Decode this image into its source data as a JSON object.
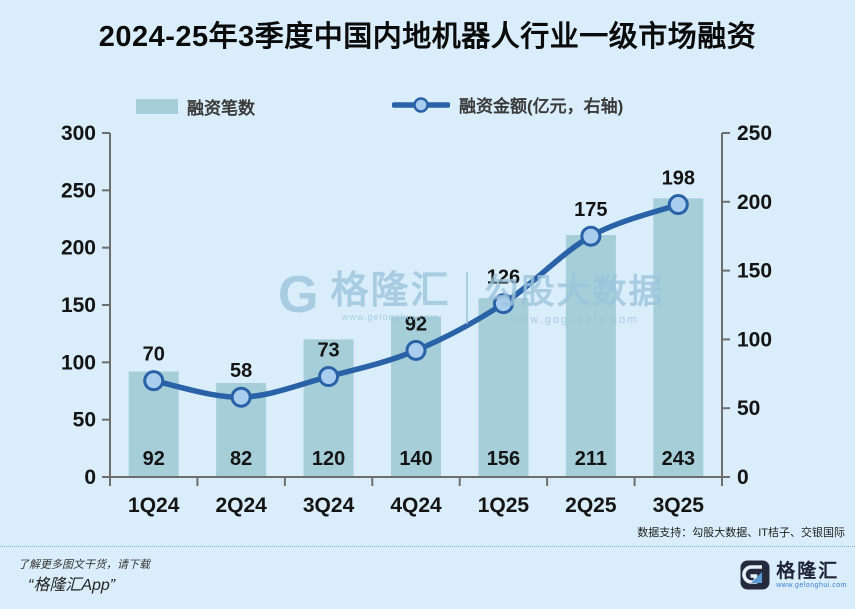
{
  "page": {
    "title": "2024-25年3季度中国内地机器人行业一级市场融资"
  },
  "legend": {
    "bars_label": "融资笔数",
    "line_label": "融资金额(亿元，右轴)"
  },
  "chart_data": {
    "type": "combo",
    "title": "2024-25年3季度中国内地机器人行业一级市场融资",
    "categories": [
      "1Q24",
      "2Q24",
      "3Q24",
      "4Q24",
      "1Q25",
      "2Q25",
      "3Q25"
    ],
    "series": [
      {
        "name": "融资笔数",
        "type": "bar",
        "axis": "left",
        "values": [
          92,
          82,
          120,
          140,
          156,
          211,
          243
        ]
      },
      {
        "name": "融资金额(亿元，右轴)",
        "type": "line",
        "axis": "right",
        "values": [
          70,
          58,
          73,
          92,
          126,
          175,
          198
        ]
      }
    ],
    "left_axis": {
      "min": 0,
      "max": 300,
      "ticks": [
        0,
        50,
        100,
        150,
        200,
        250,
        300
      ]
    },
    "right_axis": {
      "min": 0,
      "max": 250,
      "ticks": [
        0,
        50,
        100,
        150,
        200,
        250
      ]
    },
    "grid": false,
    "legend_position": "top"
  },
  "watermark": {
    "glyph": "G",
    "brand": "格隆汇",
    "brand_url": "www.gelonghui.com",
    "product": "勾股大数据",
    "product_url": "www.gogudata.com"
  },
  "footnote": {
    "data_support": "数据支持：勾股大数据、IT桔子、交银国际"
  },
  "footer": {
    "promo_line1": "了解更多图文干货，请下载",
    "promo_line2": "“格隆汇App”",
    "logo_glyph": "G",
    "logo_text": "格隆汇",
    "logo_url": "www.gelonghui.com"
  },
  "colors": {
    "background": "#d9eefa",
    "bar": "#a5ced9",
    "line": "#2a62a8",
    "marker_fill": "#a9cdee",
    "axis": "#6e6e6e",
    "label": "#141414",
    "watermark": "#9cc4dc",
    "logo_dark": "#252b3d",
    "logo_blue": "#5b9bd5"
  }
}
